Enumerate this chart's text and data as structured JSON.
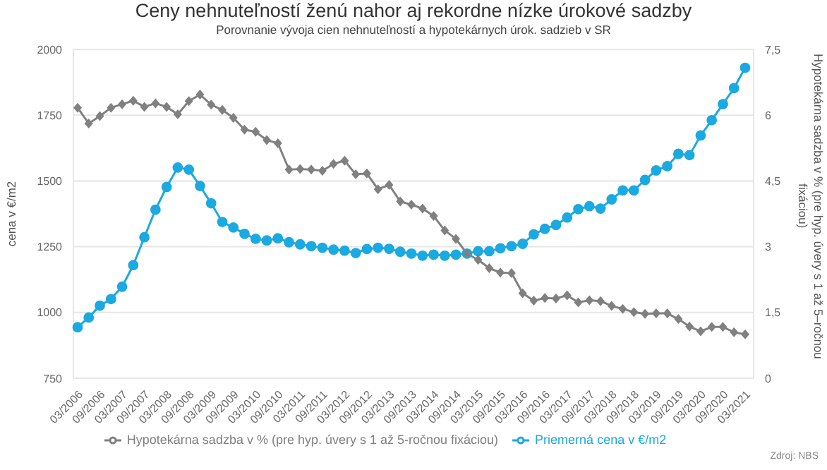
{
  "chart_data": {
    "type": "line",
    "title": "Ceny nehnuteľností ženú nahor aj rekordne nízke úrokové sadzby",
    "subtitle": "Porovnanie vývoja cien nehnuteľností a hypotekárnych úrok. sadzieb v SR",
    "ylabel": "cena v €/m2",
    "y2label": "Hypotekárna sadzba v % (pre hyp. úvery s 1 až 5–ročnou fixáciou)",
    "annotations": [
      "Zdroj: NBS"
    ],
    "categories": [
      "03/2006",
      null,
      "09/2006",
      null,
      "03/2007",
      null,
      "09/2007",
      null,
      "03/2008",
      null,
      "09/2008",
      null,
      "03/2009",
      null,
      "09/2009",
      null,
      "03/2010",
      null,
      "09/2010",
      null,
      "03/2011",
      null,
      "09/2011",
      null,
      "03/2012",
      null,
      "09/2012",
      null,
      "03/2013",
      null,
      "09/2013",
      null,
      "03/2014",
      null,
      "09/2014",
      null,
      "03/2015",
      null,
      "09/2015",
      null,
      "03/2016",
      null,
      "09/2016",
      null,
      "03/2017",
      null,
      "09/2017",
      null,
      "03/2018",
      null,
      "09/2018",
      null,
      "03/2019",
      null,
      "09/2019",
      null,
      "03/2020",
      null,
      "09/2020",
      null,
      "03/2021"
    ],
    "series": [
      {
        "name": "Priemerná cena v €/m2",
        "color": "#1ba9e1",
        "marker": "circle",
        "values": [
          944,
          981,
          1026,
          1051,
          1098,
          1180,
          1286,
          1391,
          1477,
          1551,
          1543,
          1481,
          1415,
          1344,
          1323,
          1299,
          1280,
          1274,
          1282,
          1267,
          1259,
          1252,
          1246,
          1239,
          1235,
          1226,
          1241,
          1246,
          1242,
          1231,
          1224,
          1216,
          1220,
          1216,
          1220,
          1224,
          1233,
          1233,
          1244,
          1252,
          1261,
          1297,
          1318,
          1333,
          1361,
          1393,
          1404,
          1395,
          1430,
          1464,
          1464,
          1504,
          1540,
          1556,
          1603,
          1598,
          1673,
          1731,
          1792,
          1853,
          1930
        ]
      },
      {
        "name": "Hypotekárna sadzba v % (pre hyp. úvery s 1 až 5-ročnou fixáciou)",
        "color": "#808080",
        "marker": "diamond",
        "axis": "y2",
        "values": [
          6.17,
          5.81,
          5.98,
          6.17,
          6.25,
          6.33,
          6.19,
          6.27,
          6.19,
          6.02,
          6.32,
          6.47,
          6.24,
          6.12,
          5.94,
          5.67,
          5.62,
          5.43,
          5.36,
          4.76,
          4.77,
          4.76,
          4.73,
          4.89,
          4.96,
          4.65,
          4.67,
          4.31,
          4.41,
          4.03,
          3.96,
          3.87,
          3.7,
          3.37,
          3.18,
          2.84,
          2.7,
          2.51,
          2.41,
          2.4,
          1.94,
          1.77,
          1.83,
          1.82,
          1.89,
          1.73,
          1.78,
          1.76,
          1.65,
          1.58,
          1.51,
          1.47,
          1.48,
          1.48,
          1.35,
          1.18,
          1.07,
          1.17,
          1.17,
          1.05,
          1.0
        ]
      }
    ],
    "ylim": [
      750,
      2000
    ],
    "yticks": [
      750,
      1000,
      1250,
      1500,
      1750,
      2000
    ],
    "y2lim": [
      0,
      7.5
    ],
    "y2ticks": [
      0,
      {
        "value": 1.5,
        "label": "1,5"
      },
      3,
      {
        "value": 4.5,
        "label": "4,5"
      },
      6,
      {
        "value": 7.5,
        "label": "7,5"
      }
    ],
    "grid": "y",
    "legend": "bottom",
    "line_style": "solid"
  }
}
